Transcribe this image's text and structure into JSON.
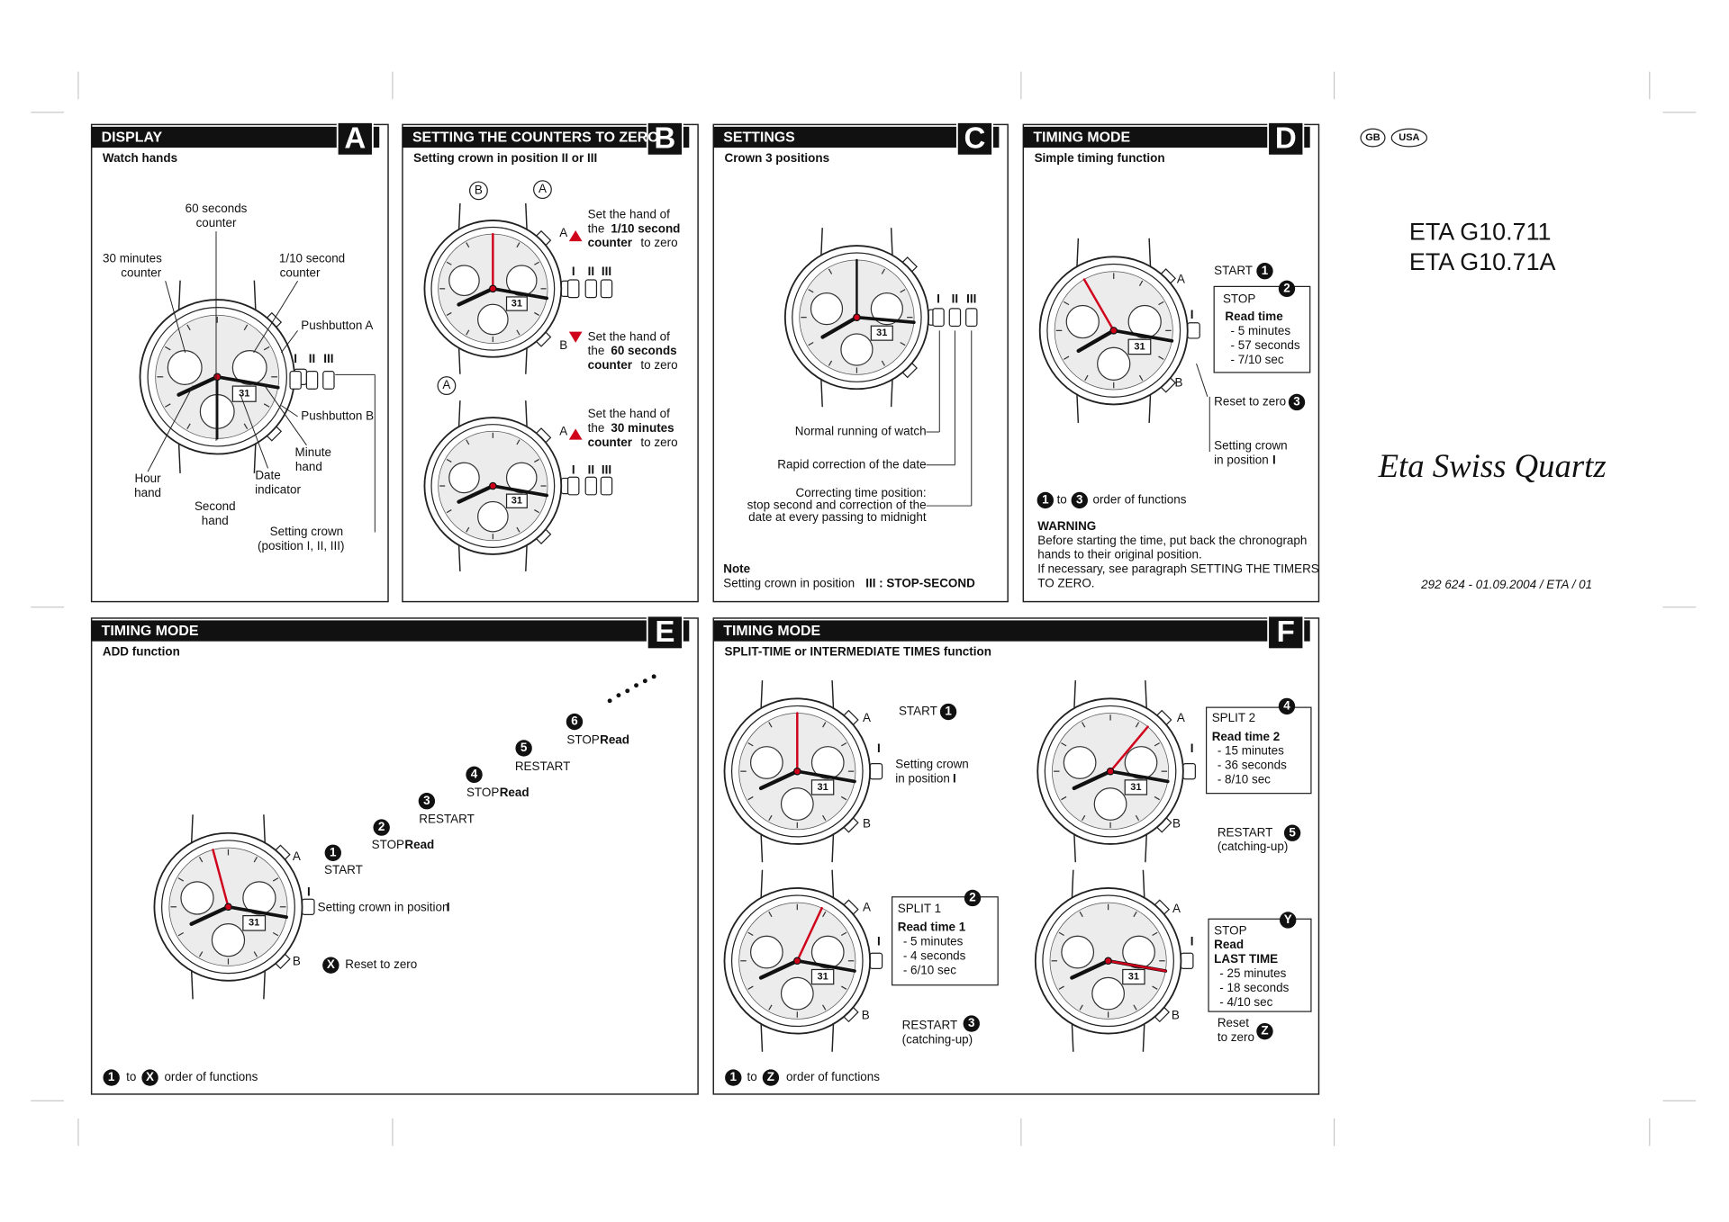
{
  "dial_date": "31",
  "panels": [
    {
      "letter": "A",
      "title": "DISPLAY",
      "subtitle": "Watch hands",
      "texts": [
        "60 seconds",
        "counter",
        "30 minutes",
        "counter",
        "1/10 second",
        "counter",
        "Pushbutton A",
        "Pushbutton B",
        "Minute",
        "hand",
        "Date",
        "indicator",
        "Hour",
        "hand",
        "Second",
        "hand",
        "Setting crown",
        "(position I, II, III)",
        "I",
        "II",
        "III"
      ]
    },
    {
      "letter": "B",
      "title": "SETTING THE COUNTERS TO ZERO",
      "subtitle": "Setting crown in position II or III",
      "texts": [
        "B",
        "A",
        "A",
        "B",
        "I",
        "II",
        "III",
        "Set the hand of",
        "the",
        "1/10 second",
        "counter",
        "to zero",
        "Set the hand of",
        "the",
        "60 seconds",
        "counter",
        "to zero",
        "Set the hand of",
        "the",
        "30 minutes",
        "counter",
        "to zero",
        "A",
        "A",
        "I",
        "II",
        "III"
      ]
    },
    {
      "letter": "C",
      "title": "SETTINGS",
      "subtitle": "Crown 3 positions",
      "texts": [
        "I",
        "II",
        "III",
        "Normal running of watch",
        "Rapid correction of the date",
        "Correcting time position:",
        "stop second and correction of the",
        "date at every passing to midnight",
        "Note",
        "Setting crown in position",
        "III : STOP-SECOND"
      ]
    },
    {
      "letter": "D",
      "title": "TIMING MODE",
      "subtitle": "Simple timing function",
      "texts": [
        "A",
        "START",
        "1",
        "STOP",
        "2",
        "Read time",
        "- 5 minutes",
        "- 57 seconds",
        "- 7/10 sec",
        "I",
        "B",
        "Reset to zero",
        "3",
        "Setting crown",
        "in position",
        "I",
        "1",
        "to",
        "3",
        "order of functions",
        "WARNING",
        "Before starting the time, put back the chronograph",
        "hands to their original position.",
        "If necessary, see paragraph SETTING THE TIMERS",
        "TO ZERO."
      ]
    },
    {
      "letter": "E",
      "title": "TIMING MODE",
      "subtitle": "ADD function",
      "texts": [
        "A",
        "1",
        "START",
        "2",
        "STOP",
        "Read",
        "3",
        "RESTART",
        "4",
        "STOP",
        "Read",
        "5",
        "RESTART",
        "6",
        "STOP",
        "Read",
        "I",
        "Setting crown in position",
        "I",
        "B",
        "X",
        "Reset to zero",
        "1",
        "to",
        "X",
        "order of functions"
      ]
    },
    {
      "letter": "F",
      "title": "TIMING MODE",
      "subtitle": "SPLIT-TIME or INTERMEDIATE TIMES function",
      "texts": [
        "A",
        "START",
        "1",
        "I",
        "Setting crown",
        "in position",
        "I",
        "B",
        "A",
        "SPLIT 2",
        "4",
        "Read time 2",
        "- 15 minutes",
        "- 36 seconds",
        "- 8/10 sec",
        "I",
        "B",
        "RESTART",
        "5",
        "(catching-up)",
        "A",
        "SPLIT 1",
        "2",
        "Read time 1",
        "- 5 minutes",
        "- 4 seconds",
        "- 6/10 sec",
        "I",
        "B",
        "RESTART",
        "3",
        "(catching-up)",
        "A",
        "STOP",
        "Y",
        "Read",
        "LAST TIME",
        "- 25 minutes",
        "- 18 seconds",
        "- 4/10 sec",
        "I",
        "B",
        "Reset",
        "to zero",
        "Z",
        "1",
        "to",
        "Z",
        "order of functions"
      ]
    }
  ],
  "side": {
    "badges": [
      "GB",
      "USA"
    ],
    "models": [
      "ETA G10.711",
      "ETA G10.71A"
    ],
    "brand": "Eta Swiss Quartz",
    "reference": "292 624 - 01.09.2004 / ETA / 01"
  }
}
